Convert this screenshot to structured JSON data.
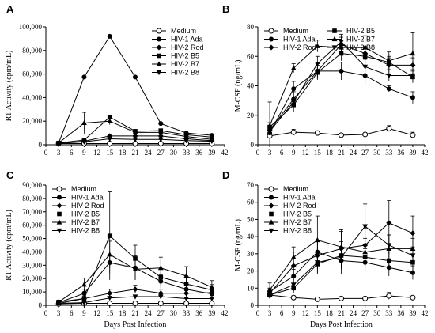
{
  "chart_data": [
    {
      "panel": "A",
      "type": "line",
      "ylabel": "RT Activity (cpm/mL)",
      "xlabel": "",
      "xlim": [
        0,
        42
      ],
      "ylim": [
        0,
        100000
      ],
      "xticks": [
        "0",
        "3",
        "6",
        "9",
        "12",
        "15",
        "18",
        "21",
        "24",
        "27",
        "30",
        "33",
        "36",
        "39",
        "42"
      ],
      "yticks": [
        "0",
        "20,000",
        "40,000",
        "60,000",
        "80,000",
        "100,000"
      ],
      "legend_columns": 1,
      "legend_position": "top-right",
      "x": [
        3,
        9,
        15,
        21,
        27,
        33,
        39
      ],
      "series": [
        {
          "name": "Medium",
          "marker": "open-circle",
          "values": [
            1000,
            1000,
            1000,
            1000,
            1000,
            1000,
            1000
          ]
        },
        {
          "name": "HIV-1 Ada",
          "marker": "circle",
          "values": [
            1500,
            57500,
            92000,
            57500,
            18000,
            10000,
            8000
          ]
        },
        {
          "name": "HIV-2 Rod",
          "marker": "diamond",
          "values": [
            1000,
            3000,
            7500,
            7500,
            7500,
            5000,
            3500
          ]
        },
        {
          "name": "HIV-2 B5",
          "marker": "square",
          "values": [
            1500,
            4000,
            23500,
            11500,
            12000,
            8500,
            6500
          ]
        },
        {
          "name": "HIV-2 B7",
          "marker": "triangle-up",
          "values": [
            1500,
            18500,
            20000,
            10500,
            10500,
            7000,
            4500
          ]
        },
        {
          "name": "HIV-2 B8",
          "marker": "triangle-down",
          "values": [
            1200,
            2500,
            5000,
            4500,
            4500,
            3500,
            3000
          ]
        }
      ],
      "errors": {
        "HIV-2 B7": [
          500,
          9000,
          3000,
          2000,
          2000,
          1500,
          1000
        ]
      }
    },
    {
      "panel": "B",
      "type": "line",
      "ylabel": "M-CSF (ng/mL)",
      "xlabel": "",
      "xlim": [
        0,
        42
      ],
      "ylim": [
        0,
        80
      ],
      "xticks": [
        "0",
        "3",
        "6",
        "9",
        "12",
        "15",
        "18",
        "21",
        "24",
        "27",
        "30",
        "33",
        "36",
        "39",
        "42"
      ],
      "yticks": [
        "0",
        "20",
        "40",
        "60",
        "80"
      ],
      "legend_columns": 2,
      "legend_position": "top-left",
      "x": [
        3,
        9,
        15,
        21,
        27,
        33,
        39
      ],
      "series": [
        {
          "name": "Medium",
          "marker": "open-circle",
          "values": [
            6,
            8.5,
            8,
            6.5,
            7,
            11,
            6.5
          ]
        },
        {
          "name": "HIV-1 Ada",
          "marker": "circle",
          "values": [
            8,
            38,
            50,
            50,
            47,
            38,
            32
          ]
        },
        {
          "name": "HIV-2 Rod",
          "marker": "diamond",
          "values": [
            10,
            31,
            50,
            68,
            62,
            54,
            54
          ]
        },
        {
          "name": "HIV-2 B5",
          "marker": "square",
          "values": [
            12,
            27,
            49,
            62,
            60,
            56,
            46
          ]
        },
        {
          "name": "HIV-2 B7",
          "marker": "triangle-up",
          "values": [
            13,
            52,
            67,
            66,
            66,
            57,
            62
          ]
        },
        {
          "name": "HIV-2 B8",
          "marker": "triangle-down",
          "values": [
            9,
            29,
            55,
            70,
            53,
            47,
            47
          ]
        }
      ],
      "errors": {
        "Medium": [
          2,
          2,
          1,
          1,
          1,
          2,
          2
        ],
        "HIV-1 Ada": [
          2,
          5,
          5,
          6,
          6,
          2,
          4
        ],
        "HIV-2 Rod": [
          3,
          5,
          5,
          5,
          5,
          5,
          5
        ],
        "HIV-2 B5": [
          3,
          5,
          5,
          5,
          5,
          4,
          4
        ],
        "HIV-2 B7": [
          16,
          3,
          4,
          5,
          8,
          6,
          14
        ],
        "HIV-2 B8": [
          3,
          4,
          5,
          5,
          5,
          4,
          4
        ]
      }
    },
    {
      "panel": "C",
      "type": "line",
      "ylabel": "RT Activity (cpm/mL)",
      "xlabel": "Days Post Infection",
      "xlim": [
        0,
        42
      ],
      "ylim": [
        0,
        90000
      ],
      "xticks": [
        "0",
        "3",
        "6",
        "9",
        "12",
        "15",
        "18",
        "21",
        "24",
        "27",
        "30",
        "33",
        "36",
        "39",
        "42"
      ],
      "yticks": [
        "0",
        "10,000",
        "20,000",
        "30,000",
        "40,000",
        "50,000",
        "60,000",
        "70,000",
        "80,000",
        "90,000"
      ],
      "legend_columns": 1,
      "legend_position": "top-left",
      "x": [
        3,
        9,
        15,
        21,
        27,
        33,
        39
      ],
      "series": [
        {
          "name": "Medium",
          "marker": "open-circle",
          "values": [
            1000,
            1500,
            1500,
            1500,
            1500,
            1500,
            1500
          ]
        },
        {
          "name": "HIV-1 Ada",
          "marker": "circle",
          "values": [
            2000,
            9000,
            32000,
            28000,
            18000,
            12000,
            8500
          ]
        },
        {
          "name": "HIV-2 Rod",
          "marker": "diamond",
          "values": [
            1500,
            5000,
            9000,
            12000,
            9000,
            9000,
            9500
          ]
        },
        {
          "name": "HIV-2 B5",
          "marker": "square",
          "values": [
            2500,
            5000,
            52000,
            35000,
            21000,
            16000,
            11500
          ]
        },
        {
          "name": "HIV-2 B7",
          "marker": "triangle-up",
          "values": [
            2500,
            15500,
            38000,
            27000,
            28000,
            22000,
            13500
          ]
        },
        {
          "name": "HIV-2 B8",
          "marker": "triangle-down",
          "values": [
            1500,
            2000,
            5500,
            6500,
            6500,
            5000,
            5000
          ]
        }
      ],
      "errors": {
        "HIV-1 Ada": [
          500,
          3000,
          8000,
          9000,
          5000,
          4000,
          3000
        ],
        "HIV-2 B5": [
          500,
          2000,
          33000,
          10000,
          6000,
          6000,
          4000
        ],
        "HIV-2 B7": [
          500,
          5000,
          10000,
          8000,
          8000,
          7000,
          5000
        ],
        "HIV-2 Rod": [
          500,
          2000,
          3000,
          3000,
          3000,
          3000,
          3000
        ]
      }
    },
    {
      "panel": "D",
      "type": "line",
      "ylabel": "M-CSF (ng/mL)",
      "xlabel": "Days Post Infection",
      "xlim": [
        0,
        42
      ],
      "ylim": [
        0,
        70
      ],
      "xticks": [
        "0",
        "3",
        "6",
        "9",
        "12",
        "15",
        "18",
        "21",
        "24",
        "27",
        "30",
        "33",
        "36",
        "39",
        "42"
      ],
      "yticks": [
        "0",
        "10",
        "20",
        "30",
        "40",
        "50",
        "60",
        "70"
      ],
      "legend_columns": 1,
      "legend_position": "top-left",
      "x": [
        3,
        9,
        15,
        21,
        27,
        33,
        39
      ],
      "series": [
        {
          "name": "Medium",
          "marker": "open-circle",
          "values": [
            6,
            4.5,
            3.5,
            4,
            4,
            5.5,
            4.5
          ]
        },
        {
          "name": "HIV-1 Ada",
          "marker": "circle",
          "values": [
            8,
            17,
            31,
            26,
            25,
            22,
            19
          ]
        },
        {
          "name": "HIV-2 Rod",
          "marker": "diamond",
          "values": [
            7,
            23,
            29,
            33,
            35,
            48,
            42
          ]
        },
        {
          "name": "HIV-2 B5",
          "marker": "square",
          "values": [
            6,
            10,
            24,
            29,
            28,
            26,
            25
          ]
        },
        {
          "name": "HIV-2 B7",
          "marker": "triangle-up",
          "values": [
            9,
            28,
            38,
            34,
            31,
            33,
            33
          ]
        },
        {
          "name": "HIV-2 B8",
          "marker": "triangle-down",
          "values": [
            6,
            12,
            25,
            28,
            46,
            35,
            29
          ]
        }
      ],
      "errors": {
        "Medium": [
          1,
          1,
          1,
          1,
          1,
          2,
          1
        ],
        "HIV-1 Ada": [
          2,
          4,
          7,
          8,
          6,
          5,
          4
        ],
        "HIV-2 Rod": [
          3,
          8,
          8,
          10,
          10,
          13,
          10
        ],
        "HIV-2 B5": [
          2,
          3,
          6,
          8,
          5,
          5,
          5
        ],
        "HIV-2 B7": [
          4,
          6,
          14,
          10,
          8,
          8,
          6
        ],
        "HIV-2 B8": [
          2,
          4,
          6,
          6,
          13,
          6,
          5
        ]
      }
    }
  ]
}
